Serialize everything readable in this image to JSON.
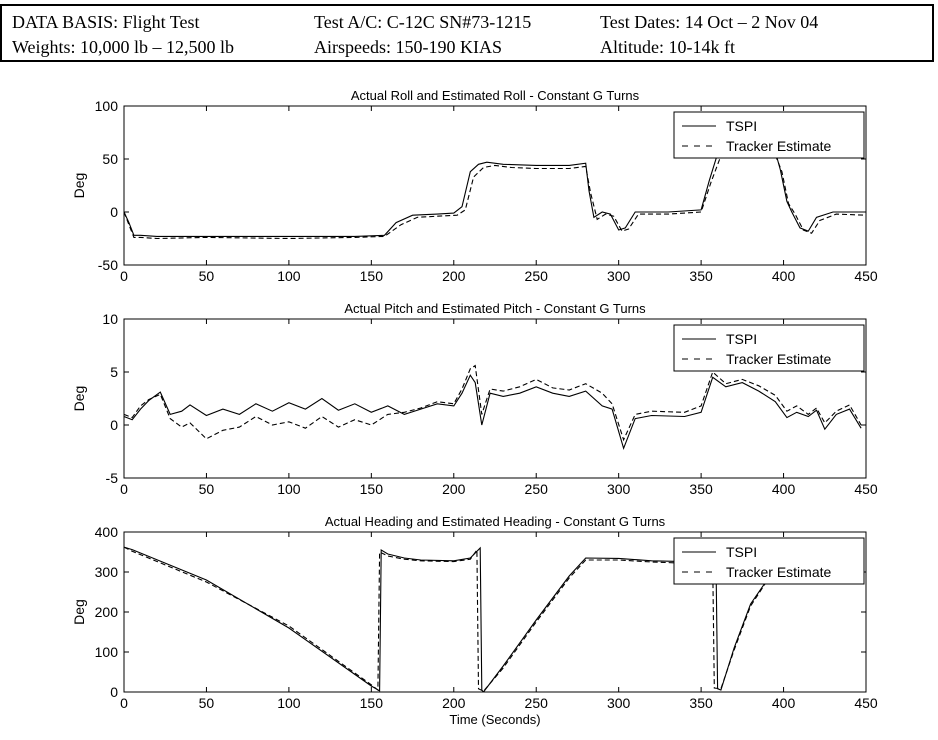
{
  "header": {
    "data_basis": "DATA BASIS: Flight Test",
    "weights": "Weights: 10,000 lb – 12,500 lb",
    "test_ac": "Test A/C: C-12C SN#73-1215",
    "airspeeds": "Airspeeds: 150-190 KIAS",
    "test_dates": "Test Dates: 14 Oct – 2 Nov 04",
    "altitude": "Altitude: 10-14k ft"
  },
  "colors": {
    "line": "#000000",
    "background": "#ffffff"
  },
  "chart_data": [
    {
      "type": "line",
      "title": "Actual Roll and Estimated Roll - Constant G Turns",
      "xlabel": "",
      "ylabel": "Deg",
      "xlim": [
        0,
        450
      ],
      "ylim": [
        -50,
        100
      ],
      "xticks": [
        "0",
        "50",
        "100",
        "150",
        "200",
        "250",
        "300",
        "350",
        "400",
        "450"
      ],
      "yticks": [
        "-50",
        "0",
        "50",
        "100"
      ],
      "legend": "top-right",
      "series": [
        {
          "name": "TSPI",
          "style": "solid",
          "x": [
            0,
            3,
            6,
            10,
            20,
            50,
            100,
            140,
            158,
            165,
            175,
            190,
            200,
            205,
            210,
            215,
            220,
            230,
            250,
            270,
            280,
            282,
            285,
            290,
            295,
            300,
            304,
            310,
            330,
            350,
            355,
            360,
            370,
            380,
            395,
            398,
            402,
            405,
            410,
            415,
            420,
            430,
            450
          ],
          "y": [
            0,
            -10,
            -22,
            -22,
            -23,
            -23,
            -23,
            -23,
            -22,
            -10,
            -3,
            -2,
            -1,
            5,
            38,
            45,
            47,
            45,
            44,
            44,
            46,
            20,
            -5,
            0,
            -2,
            -17,
            -15,
            0,
            0,
            2,
            30,
            55,
            58,
            58,
            57,
            40,
            10,
            0,
            -15,
            -18,
            -5,
            0,
            0
          ]
        },
        {
          "name": "Tracker Estimate",
          "style": "dashed",
          "x": [
            0,
            3,
            6,
            10,
            20,
            50,
            100,
            140,
            158,
            168,
            178,
            190,
            202,
            207,
            212,
            218,
            225,
            235,
            250,
            270,
            280,
            283,
            287,
            292,
            297,
            302,
            306,
            312,
            330,
            350,
            356,
            362,
            370,
            380,
            395,
            399,
            403,
            407,
            412,
            417,
            422,
            432,
            450
          ],
          "y": [
            0,
            -12,
            -24,
            -24,
            -25,
            -24,
            -25,
            -24,
            -23,
            -12,
            -5,
            -4,
            -3,
            2,
            33,
            42,
            44,
            42,
            41,
            41,
            43,
            18,
            -7,
            -2,
            -4,
            -18,
            -16,
            -2,
            -2,
            0,
            28,
            53,
            56,
            55,
            54,
            38,
            8,
            -2,
            -17,
            -20,
            -8,
            -2,
            -3
          ]
        }
      ]
    },
    {
      "type": "line",
      "title": "Actual Pitch and Estimated Pitch - Constant G Turns",
      "xlabel": "",
      "ylabel": "Deg",
      "xlim": [
        0,
        450
      ],
      "ylim": [
        -5,
        10
      ],
      "xticks": [
        "0",
        "50",
        "100",
        "150",
        "200",
        "250",
        "300",
        "350",
        "400",
        "450"
      ],
      "yticks": [
        "-5",
        "0",
        "5",
        "10"
      ],
      "legend": "top-right",
      "series": [
        {
          "name": "TSPI",
          "style": "solid",
          "x": [
            0,
            5,
            10,
            15,
            22,
            28,
            35,
            40,
            50,
            60,
            70,
            80,
            90,
            100,
            110,
            120,
            130,
            140,
            150,
            160,
            170,
            180,
            190,
            200,
            205,
            210,
            213,
            217,
            222,
            230,
            240,
            250,
            260,
            270,
            280,
            290,
            296,
            303,
            310,
            320,
            340,
            350,
            357,
            365,
            375,
            385,
            395,
            402,
            408,
            415,
            420,
            425,
            432,
            440,
            447
          ],
          "y": [
            0.8,
            0.5,
            1.5,
            2.3,
            3.1,
            1.0,
            1.3,
            1.9,
            0.9,
            1.5,
            1.0,
            2.0,
            1.3,
            2.1,
            1.5,
            2.5,
            1.4,
            2.0,
            1.2,
            1.8,
            1.0,
            1.5,
            2.0,
            1.8,
            3.0,
            4.7,
            4.0,
            0.0,
            3.0,
            2.7,
            3.0,
            3.6,
            3.0,
            2.7,
            3.2,
            1.8,
            1.5,
            -2.2,
            0.6,
            0.9,
            0.8,
            1.2,
            4.5,
            3.6,
            4.0,
            3.2,
            2.2,
            0.7,
            1.2,
            0.8,
            1.4,
            -0.4,
            1.0,
            1.5,
            -0.3
          ]
        },
        {
          "name": "Tracker Estimate",
          "style": "dashed",
          "x": [
            0,
            5,
            10,
            15,
            22,
            28,
            35,
            40,
            50,
            60,
            70,
            80,
            90,
            100,
            110,
            120,
            130,
            140,
            150,
            160,
            170,
            180,
            190,
            200,
            205,
            210,
            213,
            217,
            222,
            230,
            240,
            250,
            260,
            270,
            280,
            290,
            296,
            303,
            310,
            320,
            340,
            350,
            357,
            365,
            375,
            385,
            395,
            402,
            408,
            415,
            420,
            425,
            432,
            440,
            447
          ],
          "y": [
            1.0,
            0.7,
            1.8,
            2.4,
            2.9,
            0.6,
            -0.2,
            0.2,
            -1.3,
            -0.5,
            -0.2,
            0.8,
            0.0,
            0.3,
            -0.3,
            0.8,
            -0.2,
            0.5,
            0.0,
            1.0,
            1.2,
            1.6,
            2.2,
            2.0,
            3.4,
            5.3,
            5.6,
            1.0,
            3.4,
            3.2,
            3.6,
            4.3,
            3.5,
            3.3,
            3.9,
            3.0,
            2.0,
            -1.4,
            1.0,
            1.3,
            1.2,
            1.8,
            5.0,
            3.9,
            4.3,
            3.7,
            2.8,
            1.3,
            1.8,
            1.0,
            1.6,
            0.2,
            1.3,
            1.9,
            0.0
          ]
        }
      ]
    },
    {
      "type": "line",
      "title": "Actual Heading and Estimated Heading - Constant G Turns",
      "xlabel": "Time (Seconds)",
      "ylabel": "Deg",
      "xlim": [
        0,
        450
      ],
      "ylim": [
        0,
        400
      ],
      "xticks": [
        "0",
        "50",
        "100",
        "150",
        "200",
        "250",
        "300",
        "350",
        "400",
        "450"
      ],
      "yticks": [
        "0",
        "100",
        "200",
        "300",
        "400"
      ],
      "legend": "top-right",
      "series": [
        {
          "name": "TSPI",
          "style": "solid",
          "x": [
            0,
            5,
            50,
            100,
            150,
            155,
            156,
            160,
            170,
            180,
            200,
            210,
            216,
            217,
            218,
            230,
            250,
            270,
            280,
            300,
            320,
            340,
            359,
            360,
            362,
            370,
            380,
            390
          ],
          "y": [
            362,
            356,
            280,
            160,
            15,
            3,
            355,
            345,
            335,
            330,
            328,
            335,
            360,
            5,
            0,
            65,
            180,
            290,
            335,
            334,
            328,
            326,
            325,
            8,
            5,
            110,
            220,
            280
          ]
        },
        {
          "name": "Tracker Estimate",
          "style": "dashed",
          "x": [
            0,
            5,
            50,
            100,
            150,
            154,
            155,
            160,
            170,
            180,
            200,
            210,
            214,
            215,
            218,
            230,
            250,
            270,
            280,
            300,
            320,
            340,
            357,
            358,
            362,
            370,
            380,
            390
          ],
          "y": [
            362,
            352,
            275,
            165,
            18,
            5,
            350,
            340,
            332,
            328,
            326,
            332,
            355,
            8,
            2,
            60,
            175,
            285,
            330,
            330,
            325,
            322,
            322,
            10,
            8,
            105,
            215,
            278
          ]
        }
      ]
    }
  ]
}
